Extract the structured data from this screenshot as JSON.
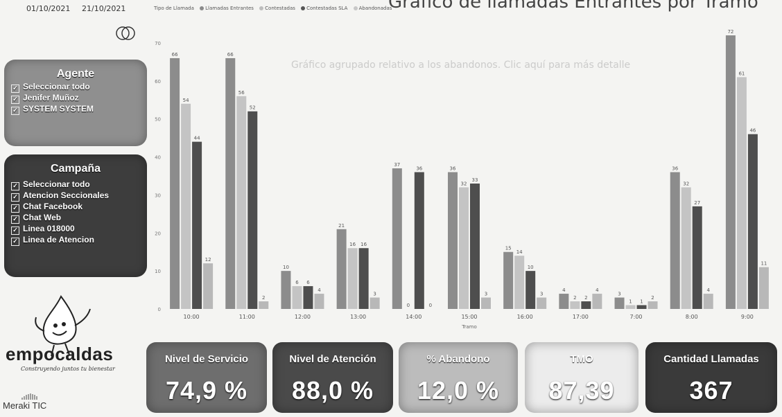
{
  "header": {
    "date_start": "01/10/2021",
    "date_end": "21/10/2021",
    "title": "Gráfico de llamadas Entrantes por Tramo",
    "subtitle": "Gráfico agrupado relativo a los abandonos. Clic aquí para más detalle",
    "legend_title": "Tipo de Llamada",
    "legend": [
      {
        "name": "Llamadas Entrantes",
        "color": "#8a8a8a"
      },
      {
        "name": "Contestadas",
        "color": "#bdbdbd"
      },
      {
        "name": "Contestadas SLA",
        "color": "#555555"
      },
      {
        "name": "Abandonadas",
        "color": "#c8c8c8"
      }
    ]
  },
  "agente": {
    "title": "Agente",
    "items": [
      {
        "label": "Seleccionar todo",
        "checked": "✓"
      },
      {
        "label": "Jenifer Muñoz",
        "checked": "✓"
      },
      {
        "label": "SYSTEM SYSTEM",
        "checked": "✓"
      }
    ]
  },
  "campana": {
    "title": "Campaña",
    "items": [
      {
        "label": "Seleccionar todo",
        "checked": "✓"
      },
      {
        "label": "Atencion Seccionales",
        "checked": "✓"
      },
      {
        "label": "Chat Facebook",
        "checked": "✓"
      },
      {
        "label": "Chat Web",
        "checked": "✓"
      },
      {
        "label": "Linea 018000",
        "checked": "✓"
      },
      {
        "label": "Linea de Atencion",
        "checked": "✓"
      }
    ]
  },
  "brand": {
    "name": "empocaldas",
    "slogan": "Construyendo juntos tu bienestar",
    "partner": "Meraki TIC"
  },
  "chart_data": {
    "type": "bar",
    "xlabel": "Tramo",
    "ylabel": "",
    "ylim": [
      0,
      70
    ],
    "yticks": [
      "0",
      "10",
      "20",
      "30",
      "40",
      "50",
      "60",
      "70"
    ],
    "categories": [
      "10:00",
      "11:00",
      "12:00",
      "13:00",
      "14:00",
      "15:00",
      "16:00",
      "17:00",
      "7:00",
      "8:00",
      "9:00"
    ],
    "series": [
      {
        "name": "Llamadas Entrantes",
        "color": "#8c8c8c",
        "values": [
          66,
          66,
          10,
          21,
          37,
          36,
          15,
          4,
          3,
          36,
          72
        ]
      },
      {
        "name": "Contestadas",
        "color": "#c4c4c4",
        "values": [
          54,
          56,
          6,
          16,
          0,
          32,
          14,
          2,
          1,
          32,
          61
        ]
      },
      {
        "name": "Contestadas SLA",
        "color": "#4e4e4e",
        "values": [
          44,
          52,
          6,
          16,
          36,
          33,
          10,
          2,
          1,
          27,
          46
        ]
      },
      {
        "name": "Abandonadas",
        "color": "#b8b8b8",
        "values": [
          12,
          2,
          4,
          3,
          0,
          3,
          3,
          4,
          2,
          4,
          11
        ]
      }
    ]
  },
  "kpis": [
    {
      "label": "Nivel de Servicio",
      "value": "74,9 %",
      "color": "#6e6e6e"
    },
    {
      "label": "Nivel de Atención",
      "value": "88,0 %",
      "color": "#4a4a4a"
    },
    {
      "label": "% Abandono",
      "value": "12,0 %",
      "color": "#bcbcbc"
    },
    {
      "label": "TMO",
      "value": "87,39",
      "color": "#ececec"
    },
    {
      "label": "Cantidad Llamadas",
      "value": "367",
      "color": "#3a3a3a"
    }
  ]
}
